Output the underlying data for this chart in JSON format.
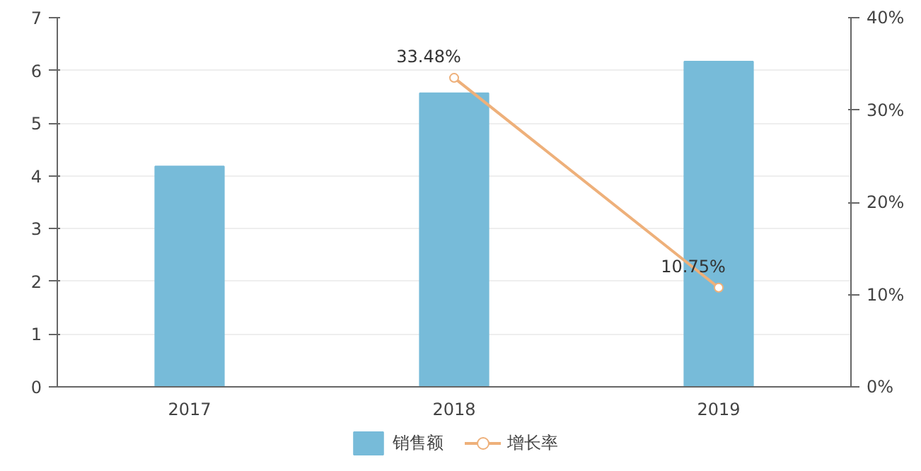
{
  "chart_data": {
    "type": "bar",
    "categories": [
      "2017",
      "2018",
      "2019"
    ],
    "series": [
      {
        "name": "销售额",
        "color": "#77bbd9",
        "values": [
          4.18,
          5.57,
          6.17
        ]
      },
      {
        "name": "增长率",
        "type": "line",
        "axis": "y2",
        "color": "#eeb07a",
        "values": [
          null,
          33.48,
          10.75
        ],
        "value_labels": [
          null,
          "33.48%",
          "10.75%"
        ],
        "marker": "circle"
      }
    ],
    "ylim": [
      0,
      7
    ],
    "yticks": [
      0,
      1,
      2,
      3,
      4,
      5,
      6,
      7
    ],
    "y2lim": [
      0,
      40
    ],
    "y2ticks": [
      {
        "value": 0,
        "label": "0%"
      },
      {
        "value": 10,
        "label": "10%"
      },
      {
        "value": 20,
        "label": "20%"
      },
      {
        "value": 30,
        "label": "30%"
      },
      {
        "value": 40,
        "label": "40%"
      }
    ],
    "grid": "y",
    "legend": "bottom"
  }
}
